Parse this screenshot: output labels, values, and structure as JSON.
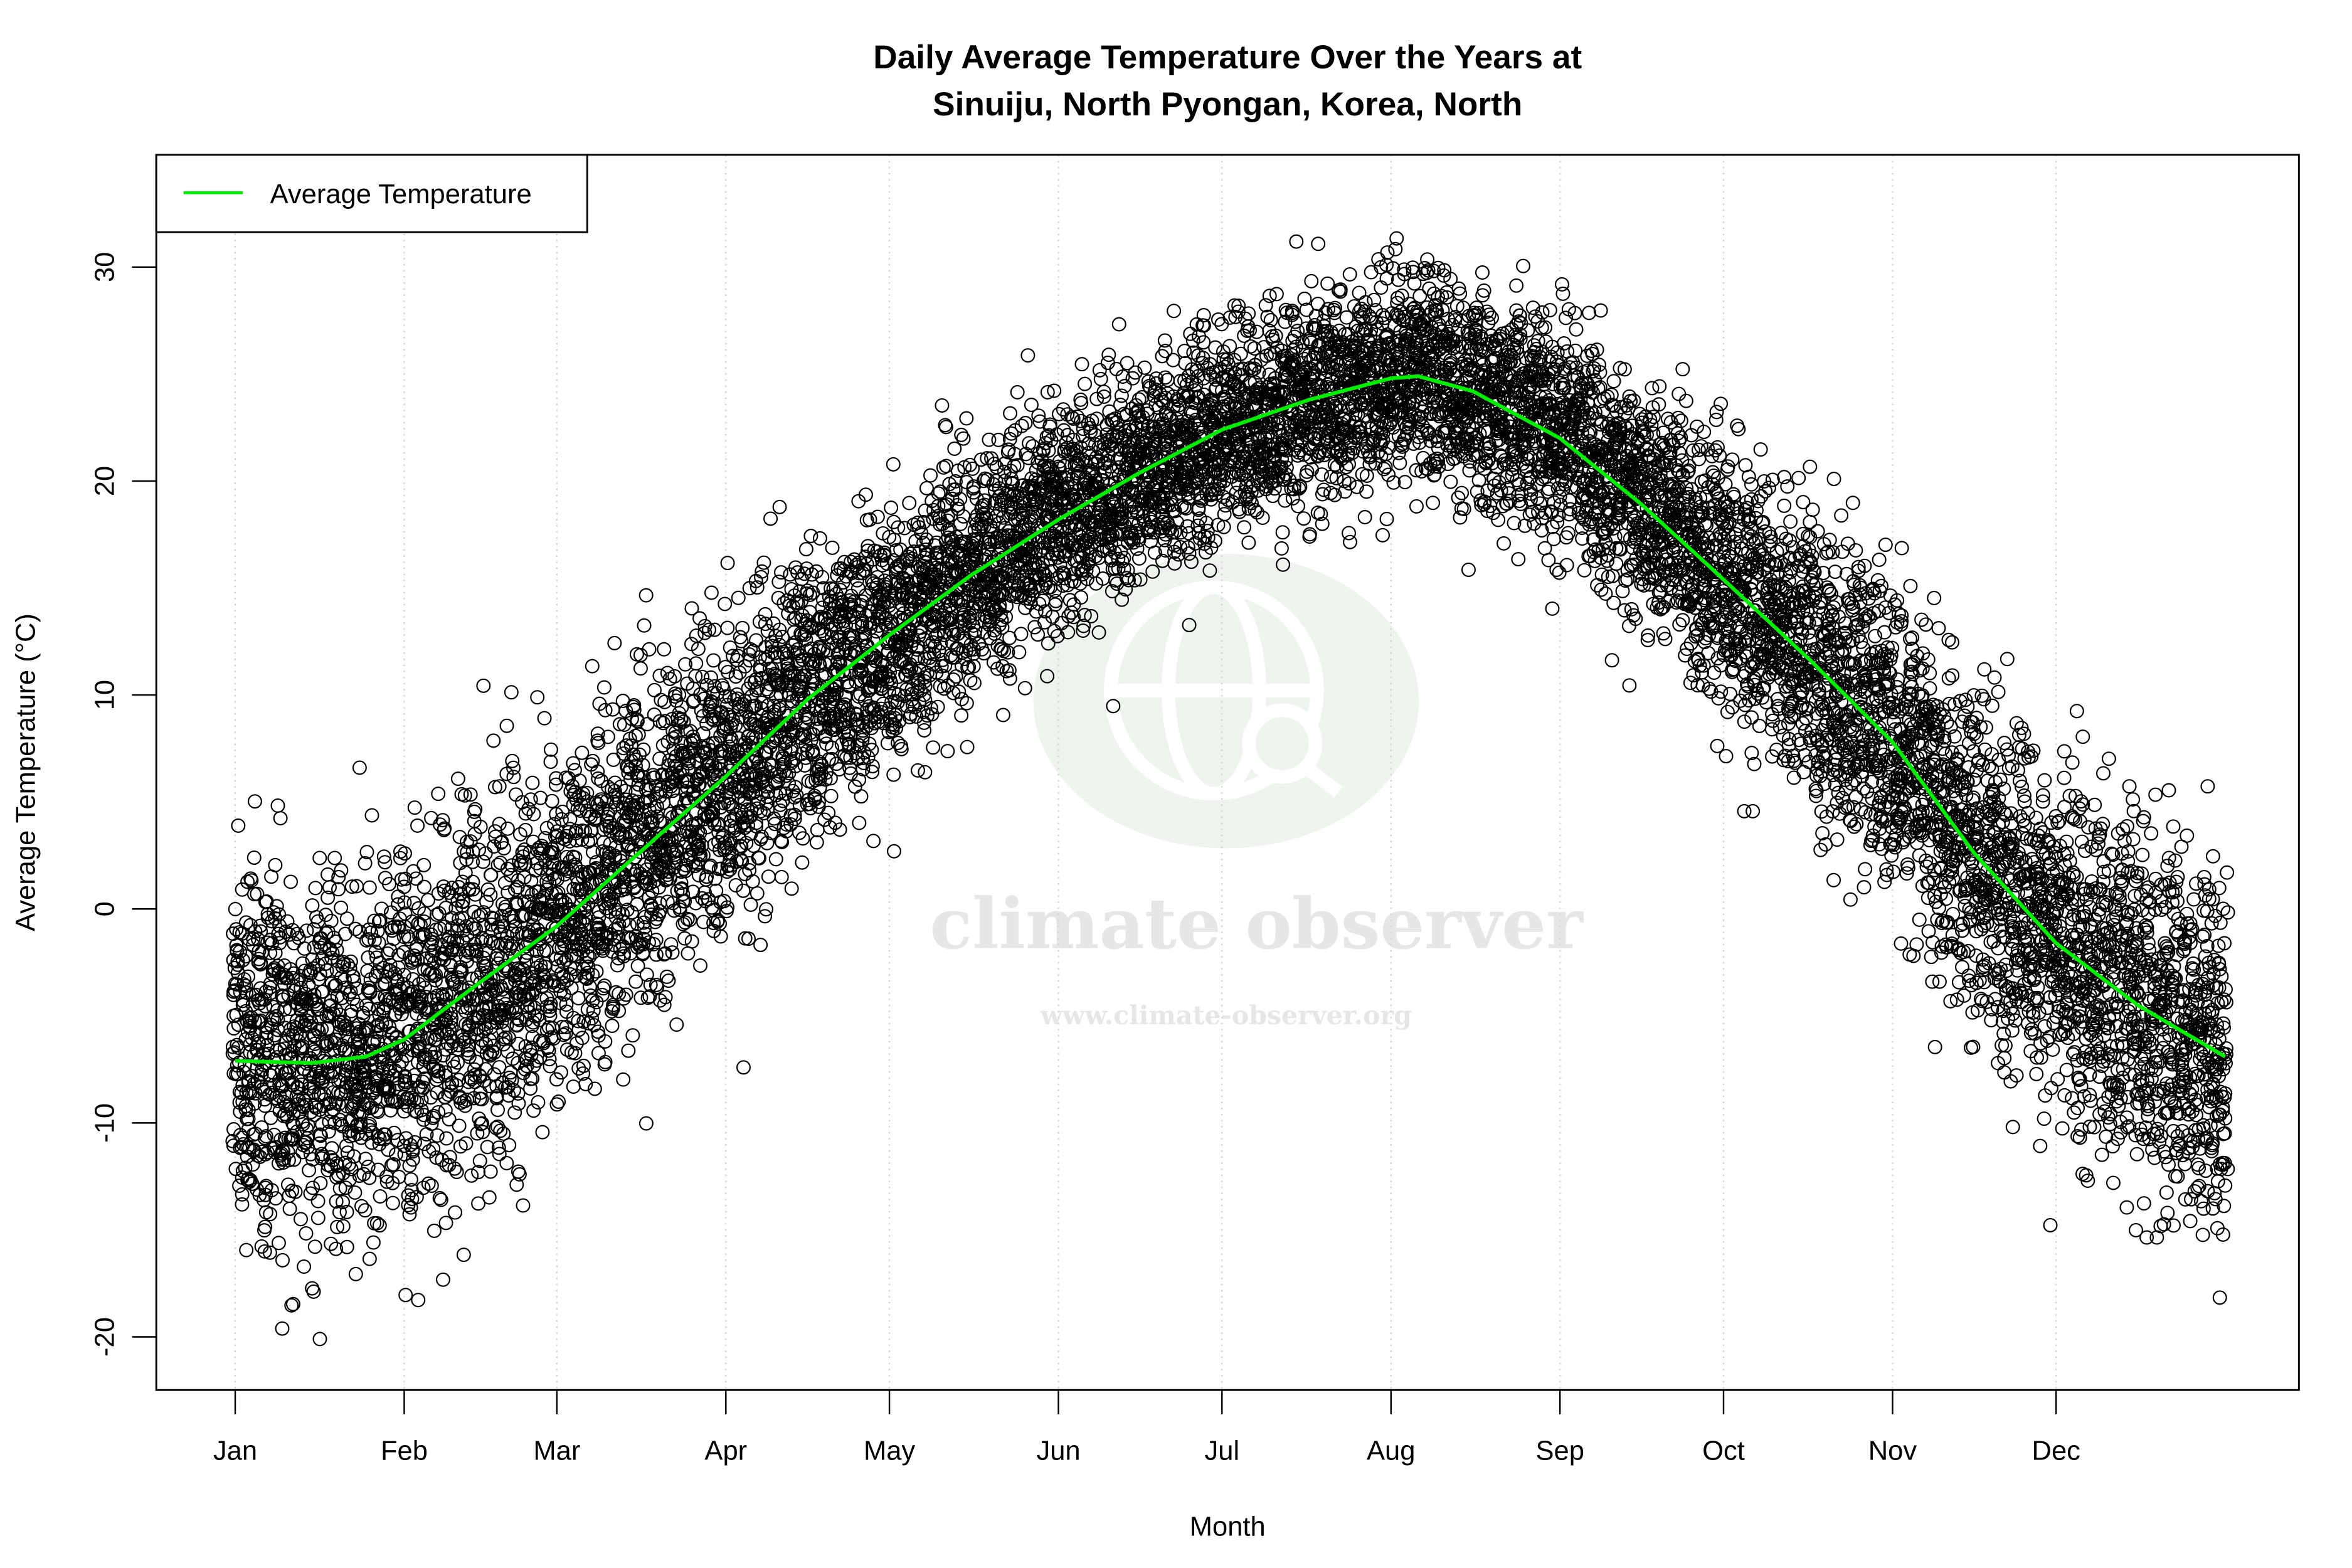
{
  "chart_data": {
    "type": "scatter",
    "title": "Daily Average Temperature Over the Years at",
    "subtitle": "Sinuiju, North Pyongan, Korea, North",
    "xlabel": "Month",
    "ylabel": "Average Temperature (°C)",
    "x_ticks": [
      "Jan",
      "Feb",
      "Mar",
      "Apr",
      "May",
      "Jun",
      "Jul",
      "Aug",
      "Sep",
      "Oct",
      "Nov",
      "Dec"
    ],
    "x_tick_days": [
      1,
      32,
      60,
      91,
      121,
      152,
      182,
      213,
      244,
      274,
      305,
      335
    ],
    "xlim_day": [
      1,
      366
    ],
    "y_ticks": [
      -20,
      -10,
      0,
      10,
      20,
      30
    ],
    "ylim": [
      -23.5,
      35
    ],
    "grid": "vertical dotted at month ticks",
    "legend": {
      "placement": "top-left",
      "entries": [
        {
          "label": "Average Temperature",
          "color": "#00ee00"
        }
      ]
    },
    "series": [
      {
        "name": "Average Temperature",
        "type": "line",
        "color": "#00ee00",
        "points_day_value": [
          [
            1,
            -7.1
          ],
          [
            15,
            -7.2
          ],
          [
            25,
            -6.9
          ],
          [
            32,
            -6.1
          ],
          [
            45,
            -3.6
          ],
          [
            60,
            -0.8
          ],
          [
            75,
            2.6
          ],
          [
            91,
            6.2
          ],
          [
            106,
            9.8
          ],
          [
            121,
            12.8
          ],
          [
            136,
            15.6
          ],
          [
            152,
            18.2
          ],
          [
            167,
            20.4
          ],
          [
            182,
            22.4
          ],
          [
            198,
            23.8
          ],
          [
            213,
            24.8
          ],
          [
            218,
            24.9
          ],
          [
            228,
            24.2
          ],
          [
            244,
            22.0
          ],
          [
            259,
            18.9
          ],
          [
            274,
            15.4
          ],
          [
            290,
            11.6
          ],
          [
            305,
            7.8
          ],
          [
            320,
            2.6
          ],
          [
            335,
            -1.6
          ],
          [
            350,
            -4.5
          ],
          [
            366,
            -6.9
          ]
        ]
      },
      {
        "type": "scatter",
        "marker": "open-circle",
        "color": "#000000",
        "description_range": {
          "min": -20.3,
          "max": 33.1
        }
      }
    ]
  },
  "watermark": {
    "logo_text": "climate observer",
    "url_text": "www.climate-observer.org"
  }
}
